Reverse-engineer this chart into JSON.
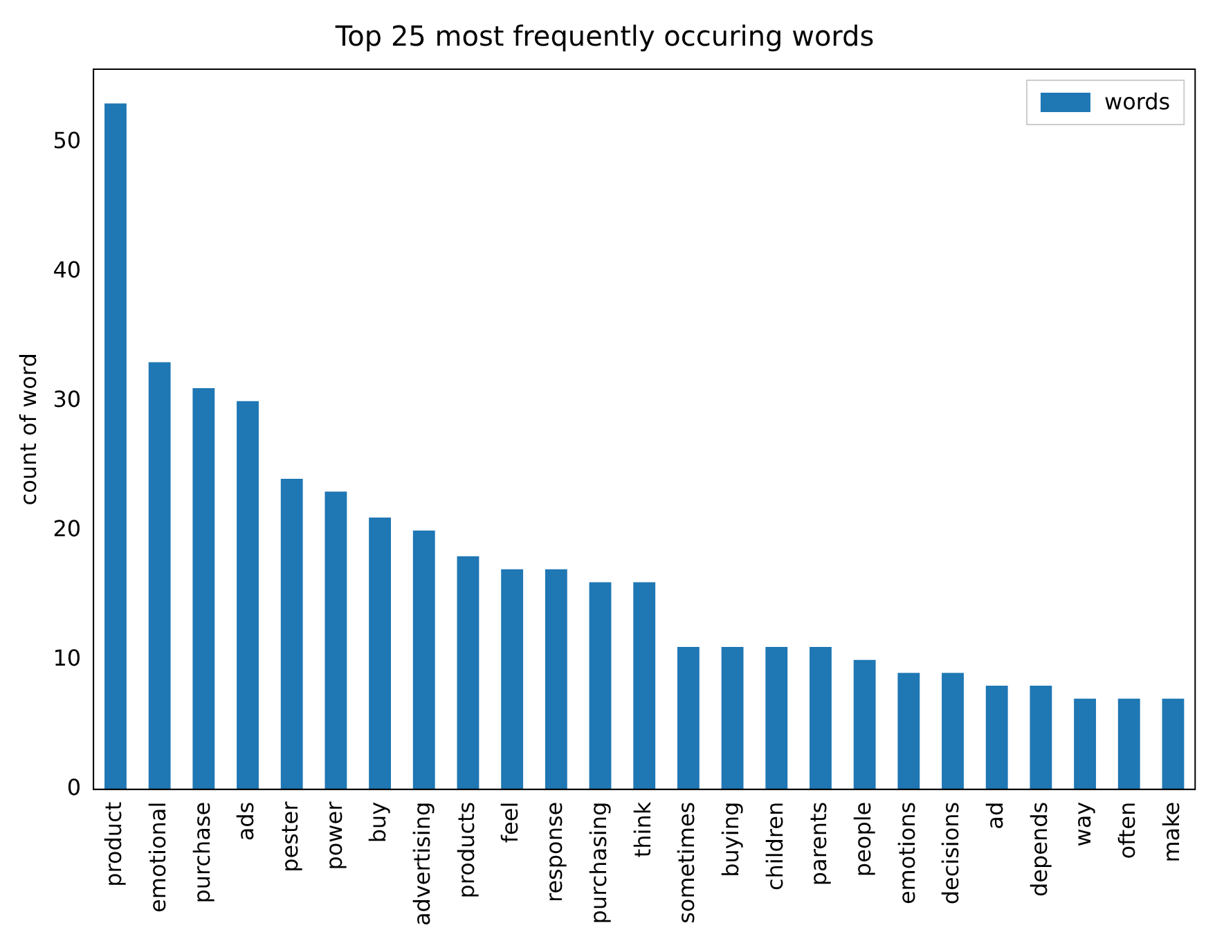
{
  "chart_data": {
    "type": "bar",
    "title": "Top 25 most frequently occuring words",
    "ylabel": "count of word",
    "categories": [
      "product",
      "emotional",
      "purchase",
      "ads",
      "pester",
      "power",
      "buy",
      "advertising",
      "products",
      "feel",
      "response",
      "purchasing",
      "think",
      "sometimes",
      "buying",
      "children",
      "parents",
      "people",
      "emotions",
      "decisions",
      "ad",
      "depends",
      "way",
      "often",
      "make"
    ],
    "series": [
      {
        "name": "words",
        "color": "#1f77b4",
        "values": [
          53,
          33,
          31,
          30,
          24,
          23,
          21,
          20,
          18,
          17,
          17,
          16,
          16,
          11,
          11,
          11,
          11,
          10,
          9,
          9,
          8,
          8,
          7,
          7,
          7
        ]
      }
    ],
    "ylim": [
      0,
      55.65
    ],
    "yticks": [
      0,
      10,
      20,
      30,
      40,
      50
    ],
    "grid": false,
    "legend": "top right"
  }
}
